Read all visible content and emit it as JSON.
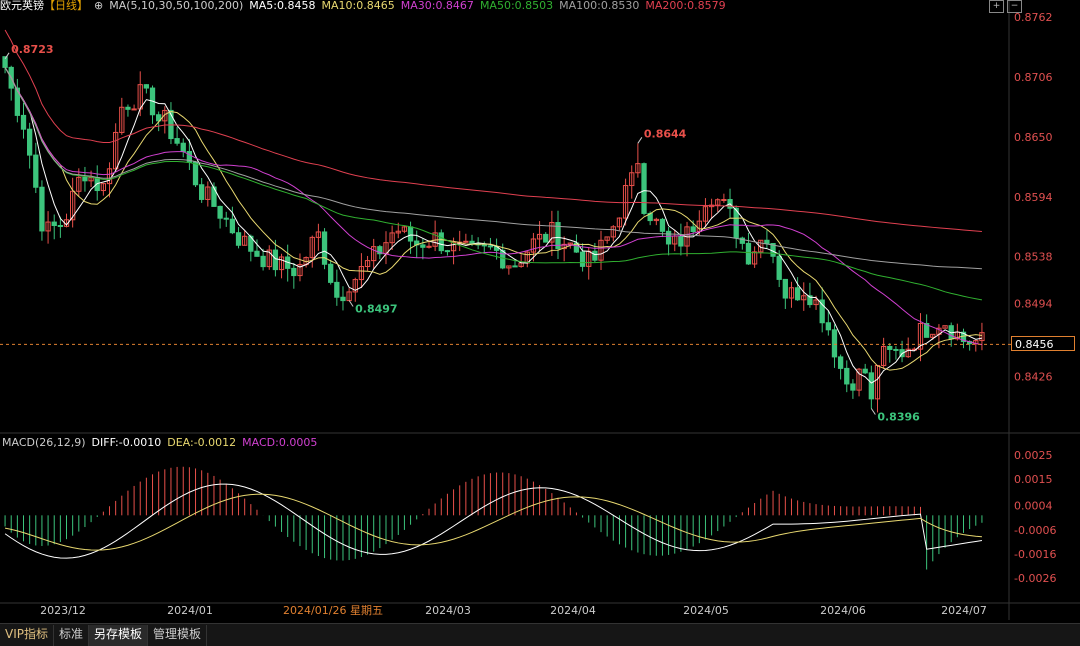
{
  "header": {
    "symbol": "欧元英镑",
    "period": "【日线】",
    "ma_label": "MA(5,10,30,50,100,200)",
    "ma5": "MA5:0.8458",
    "ma10": "MA10:0.8465",
    "ma30": "MA30:0.8467",
    "ma50": "MA50:0.8503",
    "ma100": "MA100:0.8530",
    "ma200": "MA200:0.8579"
  },
  "macd_header": {
    "label": "MACD(26,12,9)",
    "diff": "DIFF:-0.0010",
    "dea": "DEA:-0.0012",
    "macd": "MACD:0.0005"
  },
  "colors": {
    "up": "#e8504a",
    "down": "#3cc47c",
    "ma5": "#ffffff",
    "ma10": "#e8d870",
    "ma30": "#d040d0",
    "ma50": "#30b030",
    "ma100": "#a0a0a0",
    "ma200": "#e04050",
    "last_price_line": "#e08030",
    "axis_text": "#e05050",
    "date_text": "#cccccc"
  },
  "last_price": "0.8456",
  "chart_data": {
    "type": "candlestick",
    "price_axis": {
      "ticks": [
        "0.8762",
        "0.8706",
        "0.8650",
        "0.8594",
        "0.8538",
        "0.8494",
        "0.8426"
      ],
      "ylim": [
        0.8374,
        0.8764
      ]
    },
    "macd_axis": {
      "ticks": [
        "0.0025",
        "0.0015",
        "0.0004",
        "-0.0006",
        "-0.0016",
        "-0.0026"
      ],
      "ylim": [
        -0.0035,
        0.0027
      ]
    },
    "dates": [
      "2023/12",
      "2024/01",
      "2024/01/26 星期五",
      "2024/03",
      "2024/04",
      "2024/05",
      "2024/06",
      "2024/07"
    ],
    "annotations": [
      {
        "text": "0.8723",
        "value": 0.8723,
        "kind": "high"
      },
      {
        "text": "0.8497",
        "value": 0.8497,
        "kind": "low"
      },
      {
        "text": "0.8644",
        "value": 0.8644,
        "kind": "high"
      },
      {
        "text": "0.8396",
        "value": 0.8396,
        "kind": "low"
      }
    ],
    "ma_values": {
      "ma5": 0.8458,
      "ma10": 0.8465,
      "ma30": 0.8467,
      "ma50": 0.8503,
      "ma100": 0.853,
      "ma200": 0.8579
    },
    "macd_values": {
      "diff": -0.001,
      "dea": -0.0012,
      "macd": 0.0005
    },
    "close_path": [
      0.871,
      0.866,
      0.856,
      0.857,
      0.862,
      0.86,
      0.868,
      0.869,
      0.867,
      0.864,
      0.86,
      0.858,
      0.8555,
      0.854,
      0.853,
      0.8525,
      0.856,
      0.85,
      0.852,
      0.854,
      0.8565,
      0.855,
      0.8555,
      0.8545,
      0.854,
      0.8545,
      0.853,
      0.855,
      0.856,
      0.8548,
      0.853,
      0.856,
      0.861,
      0.858,
      0.8545,
      0.856,
      0.86,
      0.858,
      0.854,
      0.856,
      0.85,
      0.851,
      0.848,
      0.842,
      0.843,
      0.8445,
      0.845,
      0.847,
      0.848,
      0.846,
      0.8458
    ]
  },
  "tabs": [
    "VIP指标",
    "标准",
    "另存模板",
    "管理模板"
  ]
}
